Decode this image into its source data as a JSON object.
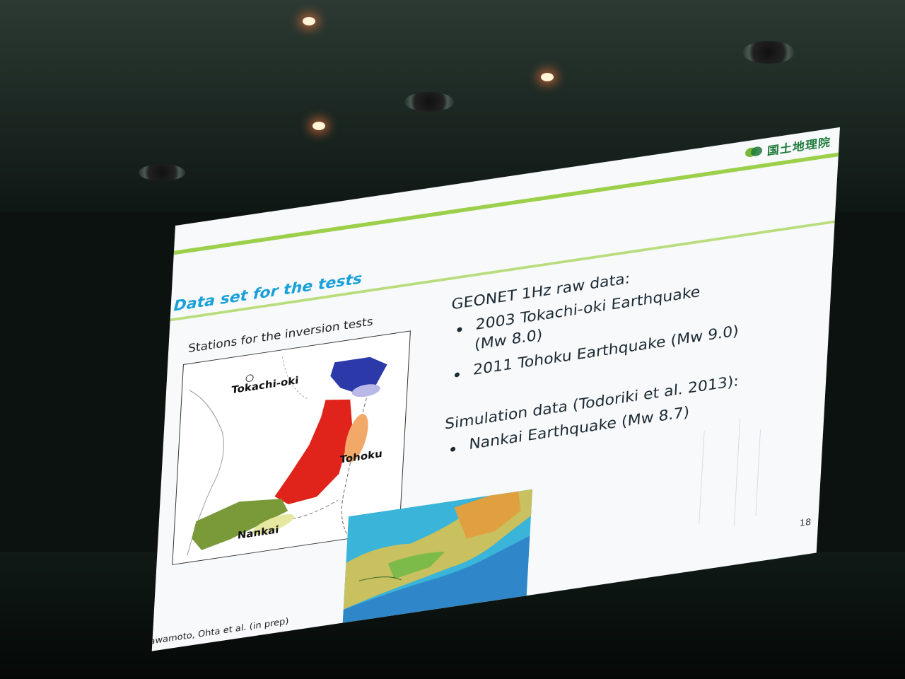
{
  "slide": {
    "logo_text": "国土地理院",
    "title": "Data set for the tests",
    "map_caption": "Stations for the inversion tests",
    "map_labels": {
      "tokachi": "Tokachi-oki",
      "tohoku": "Tohoku",
      "nankai": "Nankai"
    },
    "lines": {
      "geonet_heading": "GEONET 1Hz raw data:",
      "bullet1_line1": "2003 Tokachi-oki Earthquake",
      "bullet1_line2": "(Mw 8.0)",
      "bullet2": "2011 Tohoku Earthquake (Mw 9.0)",
      "simulation_heading": "Simulation data (Todoriki et al. 2013):",
      "bullet3": "Nankai Earthquake (Mw 8.7)"
    },
    "page_number": "18",
    "credit": "awamoto, Ohta et al. (in prep)"
  },
  "colors": {
    "title_blue": "#19a0d8",
    "accent_green": "#9ccf4a",
    "hokkaido_blue": "#2b3aa8",
    "tohoku_red": "#e0231b",
    "southwest_green": "#7a9a3a",
    "ellipse_orange": "#f2a868",
    "ellipse_lavender": "#b9b8e8"
  }
}
